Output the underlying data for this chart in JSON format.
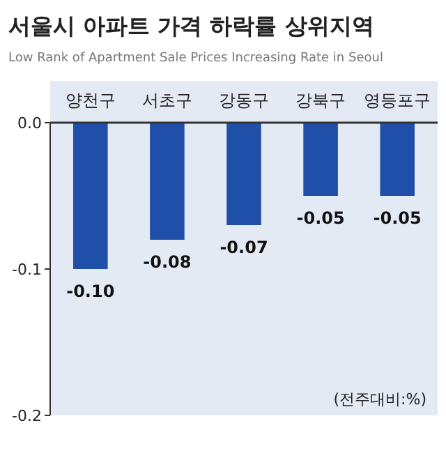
{
  "chart_data": {
    "type": "bar",
    "title": "서울시 아파트 가격 하락률 상위지역",
    "subtitle": "Low Rank of Apartment Sale Prices Increasing Rate in Seoul",
    "categories": [
      "양천구",
      "서초구",
      "강동구",
      "강북구",
      "영등포구"
    ],
    "values": [
      -0.1,
      -0.08,
      -0.07,
      -0.05,
      -0.05
    ],
    "color": "#1f4fa8",
    "ylim": [
      -0.2,
      0
    ],
    "yticks": [
      {
        "value": 0,
        "label": "0.0"
      },
      {
        "value": -0.1,
        "label": "-0.1"
      },
      {
        "value": -0.2,
        "label": "-0.2"
      }
    ],
    "value_labels": [
      "-0.10",
      "-0.08",
      "-0.07",
      "-0.05",
      "-0.05"
    ],
    "grid": false,
    "annotations": [
      "(전주대비:%)"
    ]
  }
}
